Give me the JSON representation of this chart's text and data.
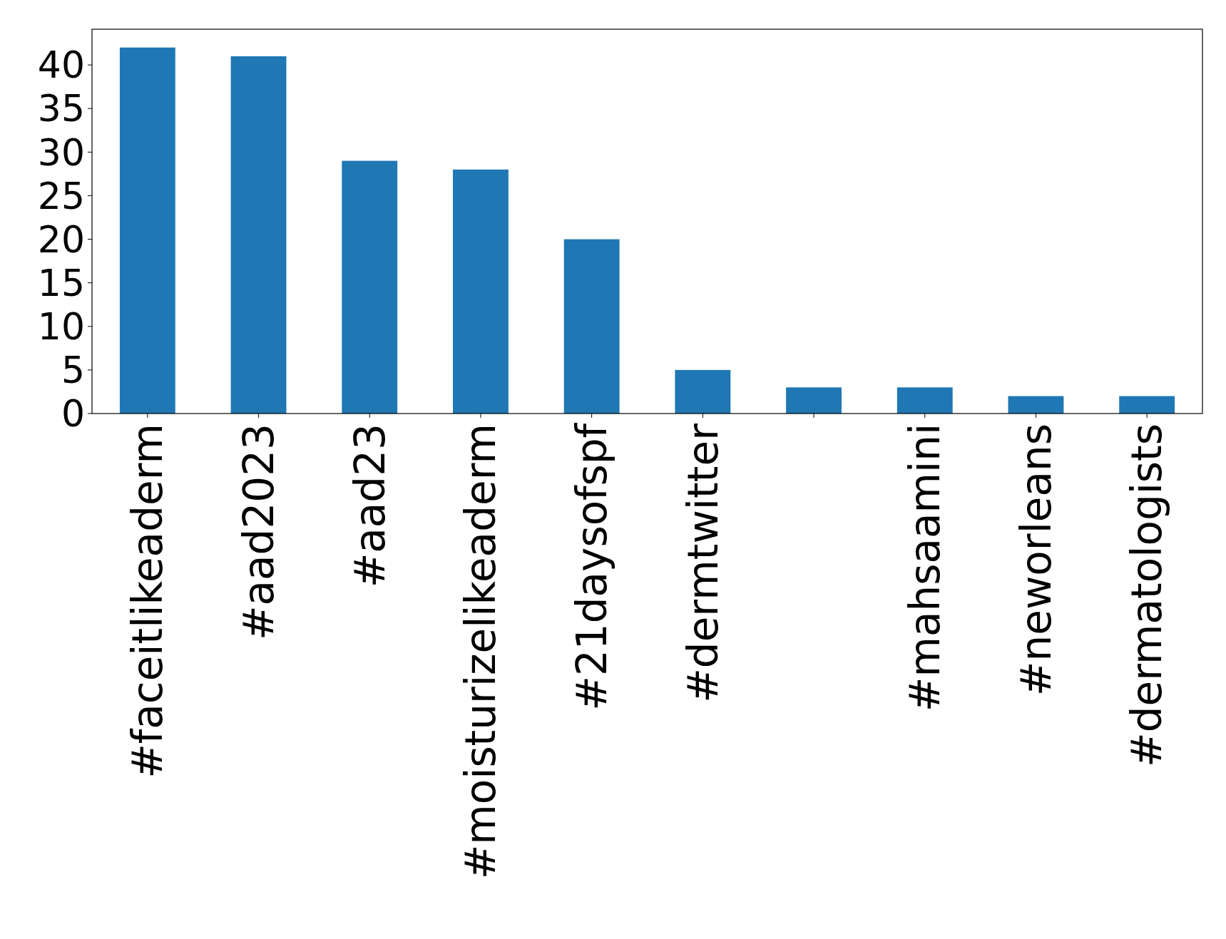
{
  "chart_data": {
    "type": "bar",
    "categories": [
      "#faceitlikeaderm",
      "#aad2023",
      "#aad23",
      "#moisturizelikeaderm",
      "#21daysofspf",
      "#dermtwitter",
      null,
      "#mahsaamini",
      "#neworleans",
      "#dermatologists"
    ],
    "values": [
      42,
      41,
      29,
      28,
      20,
      5,
      3,
      3,
      2,
      2
    ],
    "color": "#1f77b4",
    "ylim": [
      0,
      44.1
    ],
    "yticks": [
      0,
      5,
      10,
      15,
      20,
      25,
      30,
      35,
      40
    ],
    "grid": false
  }
}
